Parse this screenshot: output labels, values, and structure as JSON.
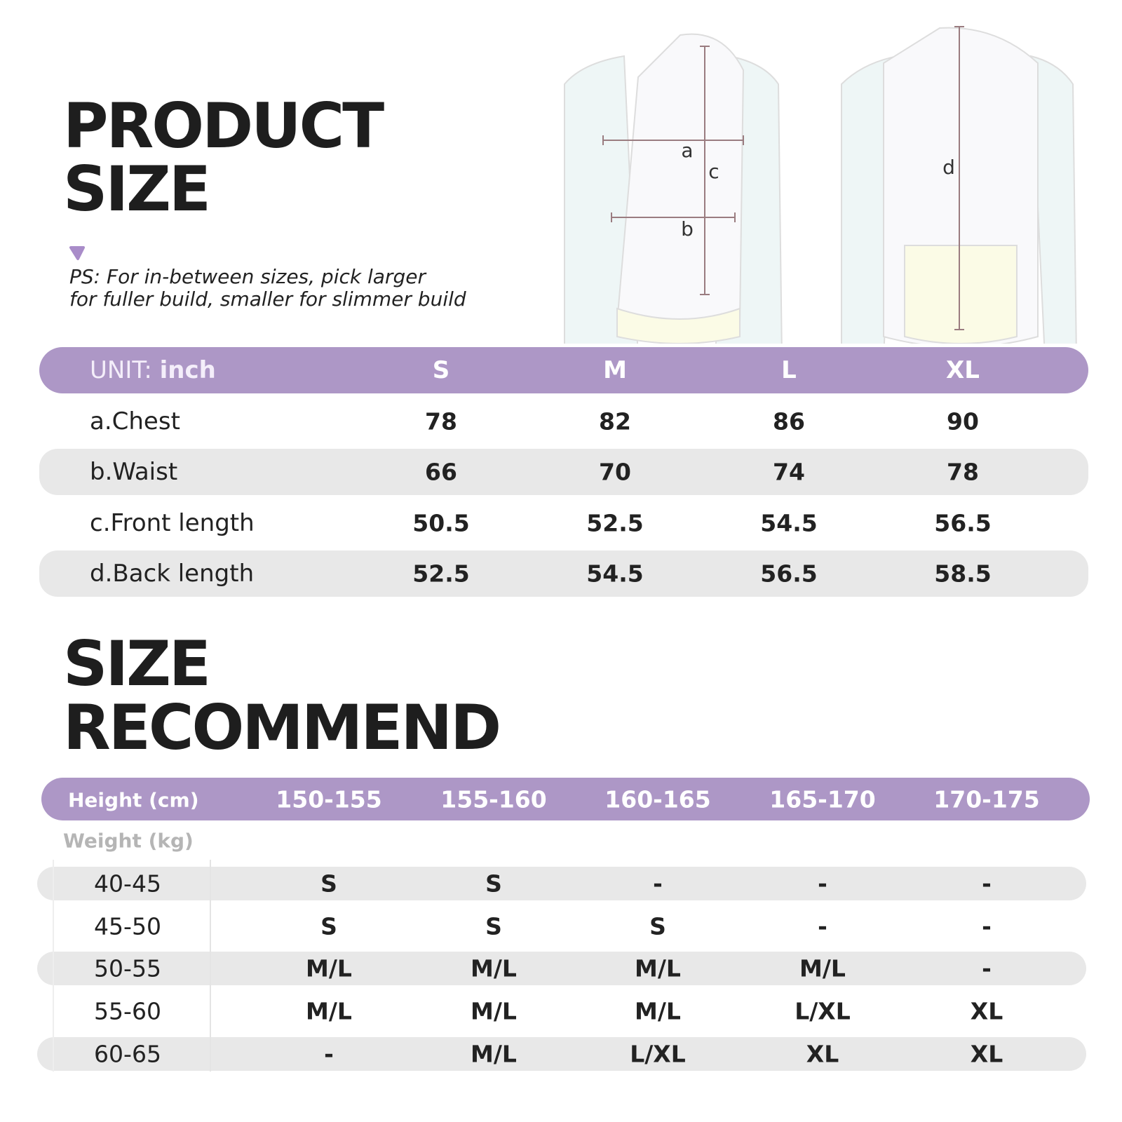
{
  "title": {
    "lines": [
      "PRODUCT",
      "SIZE"
    ]
  },
  "note": {
    "lines": [
      "PS: For in-between sizes, pick larger",
      "for fuller build, smaller for slimmer build"
    ]
  },
  "diagram": {
    "labels": [
      "a",
      "b",
      "c",
      "d"
    ]
  },
  "size_table": {
    "unit_label": "UNIT:",
    "unit": "inch",
    "columns": [
      "S",
      "M",
      "L",
      "XL"
    ],
    "rows": [
      {
        "label": "a.Chest",
        "values": [
          "78",
          "82",
          "86",
          "90"
        ]
      },
      {
        "label": "b.Waist",
        "values": [
          "66",
          "70",
          "74",
          "78"
        ]
      },
      {
        "label": "c.Front length",
        "values": [
          "50.5",
          "52.5",
          "54.5",
          "56.5"
        ]
      },
      {
        "label": "d.Back length",
        "values": [
          "52.5",
          "54.5",
          "56.5",
          "58.5"
        ]
      }
    ]
  },
  "recommend_title": {
    "lines": [
      "SIZE",
      "RECOMMEND"
    ]
  },
  "recommend_table": {
    "row_header": "Height (cm)",
    "col_header": "Weight (kg)",
    "columns": [
      "150-155",
      "155-160",
      "160-165",
      "165-170",
      "170-175"
    ],
    "rows": [
      {
        "label": "40-45",
        "values": [
          "S",
          "S",
          "-",
          "-",
          "-"
        ]
      },
      {
        "label": "45-50",
        "values": [
          "S",
          "S",
          "S",
          "-",
          "-"
        ]
      },
      {
        "label": "50-55",
        "values": [
          "M/L",
          "M/L",
          "M/L",
          "M/L",
          "-"
        ]
      },
      {
        "label": "55-60",
        "values": [
          "M/L",
          "M/L",
          "M/L",
          "L/XL",
          "XL"
        ]
      },
      {
        "label": "60-65",
        "values": [
          "-",
          "M/L",
          "L/XL",
          "XL",
          "XL"
        ]
      }
    ]
  }
}
